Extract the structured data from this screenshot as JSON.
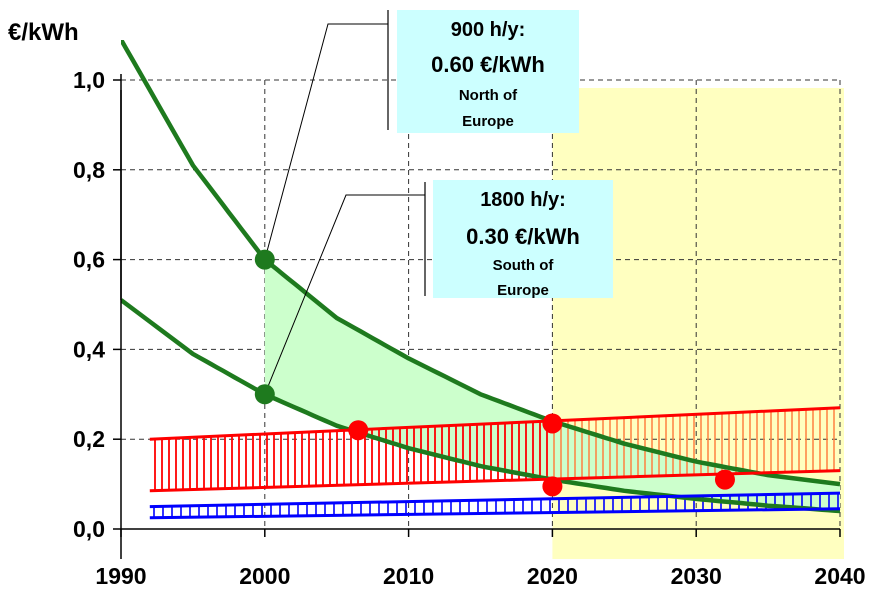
{
  "chart_data": {
    "type": "line",
    "title": "",
    "xlabel": "",
    "ylabel": "€/kWh",
    "xlim": [
      1990,
      2040
    ],
    "ylim": [
      0,
      1.0
    ],
    "x_ticks": [
      "1990",
      "2000",
      "2010",
      "2020",
      "2030",
      "2040"
    ],
    "x_tick_values": [
      1990,
      2000,
      2010,
      2020,
      2030,
      2040
    ],
    "y_ticks": [
      "0,0",
      "0,2",
      "0,4",
      "0,6",
      "0,8",
      "1,0"
    ],
    "y_tick_values": [
      0,
      0.2,
      0.4,
      0.6,
      0.8,
      1.0
    ],
    "grid": true,
    "highlight_region": {
      "x_from": 2020,
      "x_to": 2040,
      "color": "#ffffc0"
    },
    "series": [
      {
        "color": "#1e7a1e",
        "x": [
          1990,
          1995,
          2000,
          2005,
          2010,
          2015,
          2020,
          2025,
          2030,
          2035,
          2040
        ],
        "values": [
          1.09,
          0.81,
          0.6,
          0.47,
          0.38,
          0.3,
          0.24,
          0.19,
          0.15,
          0.12,
          0.1
        ]
      },
      {
        "color": "#1e7a1e",
        "x": [
          1990,
          1995,
          2000,
          2005,
          2010,
          2015,
          2020,
          2025,
          2030,
          2035,
          2040
        ],
        "values": [
          0.51,
          0.39,
          0.3,
          0.23,
          0.18,
          0.14,
          0.11,
          0.085,
          0.067,
          0.052,
          0.04
        ]
      },
      {
        "color": "#ff0000",
        "x": [
          1992,
          2040
        ],
        "values": [
          0.2,
          0.27
        ]
      },
      {
        "color": "#ff0000",
        "x": [
          1992,
          2040
        ],
        "values": [
          0.085,
          0.13
        ]
      },
      {
        "color": "#0000ff",
        "x": [
          1992,
          2040
        ],
        "values": [
          0.05,
          0.08
        ]
      },
      {
        "color": "#0000ff",
        "x": [
          1992,
          2040
        ],
        "values": [
          0.025,
          0.045
        ]
      }
    ],
    "markers": [
      {
        "x": 2000,
        "y": 0.6,
        "color": "#1e7a1e"
      },
      {
        "x": 2000,
        "y": 0.3,
        "color": "#1e7a1e"
      },
      {
        "x": 2006.5,
        "y": 0.22,
        "color": "#ff0000"
      },
      {
        "x": 2020,
        "y": 0.235,
        "color": "#ff0000"
      },
      {
        "x": 2020,
        "y": 0.095,
        "color": "#ff0000"
      },
      {
        "x": 2032,
        "y": 0.11,
        "color": "#ff0000"
      }
    ],
    "annotations": [
      {
        "line1": "900 h/y:",
        "line2": "0.60 €/kWh",
        "line3": "North of",
        "line4": "Europe"
      },
      {
        "line1": "1800 h/y:",
        "line2": "0.30 €/kWh",
        "line3": "South of",
        "line4": "Europe"
      }
    ],
    "colors": {
      "green_fill": "#ccffcc",
      "box_fill": "#ccffff",
      "red_hatch": "#ff0000",
      "blue_hatch": "#0000ff"
    }
  }
}
